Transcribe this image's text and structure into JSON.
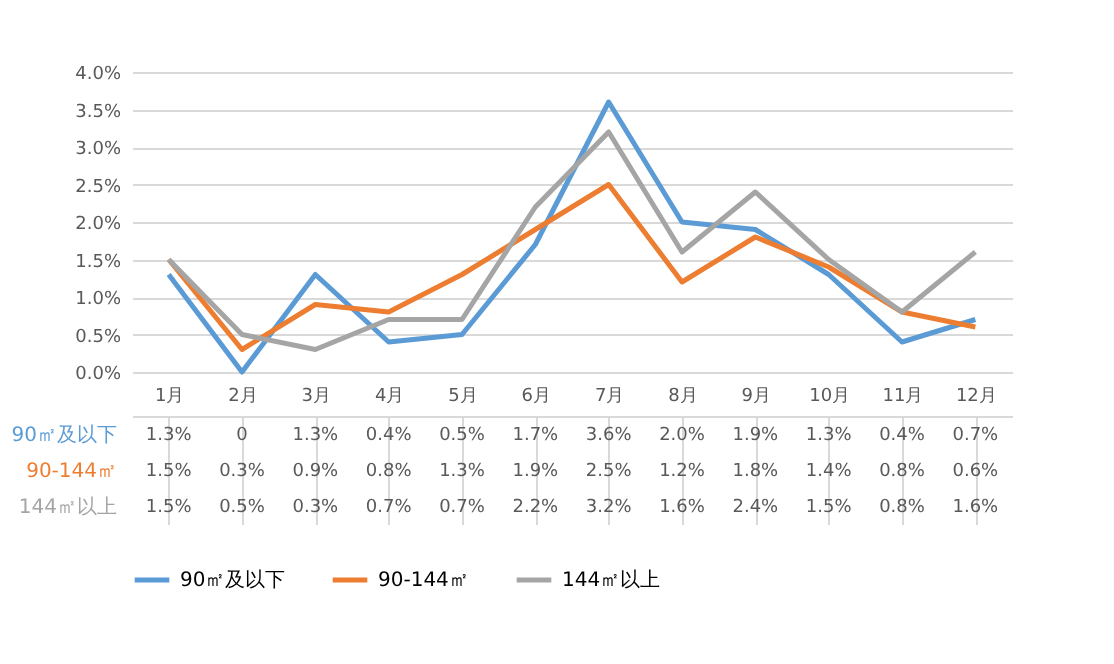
{
  "chart_data": {
    "type": "line",
    "categories": [
      "1月",
      "2月",
      "3月",
      "4月",
      "5月",
      "6月",
      "7月",
      "8月",
      "9月",
      "10月",
      "11月",
      "12月"
    ],
    "series": [
      {
        "name": "90㎡及以下",
        "color": "#5b9bd5",
        "values": [
          1.3,
          0,
          1.3,
          0.4,
          0.5,
          1.7,
          3.6,
          2.0,
          1.9,
          1.3,
          0.4,
          0.7
        ],
        "value_labels": [
          "1.3%",
          "0",
          "1.3%",
          "0.4%",
          "0.5%",
          "1.7%",
          "3.6%",
          "2.0%",
          "1.9%",
          "1.3%",
          "0.4%",
          "0.7%"
        ]
      },
      {
        "name": "90-144㎡",
        "color": "#ed7d31",
        "values": [
          1.5,
          0.3,
          0.9,
          0.8,
          1.3,
          1.9,
          2.5,
          1.2,
          1.8,
          1.4,
          0.8,
          0.6
        ],
        "value_labels": [
          "1.5%",
          "0.3%",
          "0.9%",
          "0.8%",
          "1.3%",
          "1.9%",
          "2.5%",
          "1.2%",
          "1.8%",
          "1.4%",
          "0.8%",
          "0.6%"
        ]
      },
      {
        "name": "144㎡以上",
        "color": "#a5a5a5",
        "values": [
          1.5,
          0.5,
          0.3,
          0.7,
          0.7,
          2.2,
          3.2,
          1.6,
          2.4,
          1.5,
          0.8,
          1.6
        ],
        "value_labels": [
          "1.5%",
          "0.5%",
          "0.3%",
          "0.7%",
          "0.7%",
          "2.2%",
          "3.2%",
          "1.6%",
          "2.4%",
          "1.5%",
          "0.8%",
          "1.6%"
        ]
      }
    ],
    "ylim": [
      0,
      4
    ],
    "yticks": [
      {
        "value": 0,
        "label": "0.0%"
      },
      {
        "value": 0.5,
        "label": "0.5%"
      },
      {
        "value": 1,
        "label": "1.0%"
      },
      {
        "value": 1.5,
        "label": "1.5%"
      },
      {
        "value": 2,
        "label": "2.0%"
      },
      {
        "value": 2.5,
        "label": "2.5%"
      },
      {
        "value": 3,
        "label": "3.0%"
      },
      {
        "value": 3.5,
        "label": "3.5%"
      },
      {
        "value": 4,
        "label": "4.0%"
      }
    ],
    "grid": "y",
    "legend": "bottom",
    "marker": "none",
    "line_style": "solid"
  }
}
